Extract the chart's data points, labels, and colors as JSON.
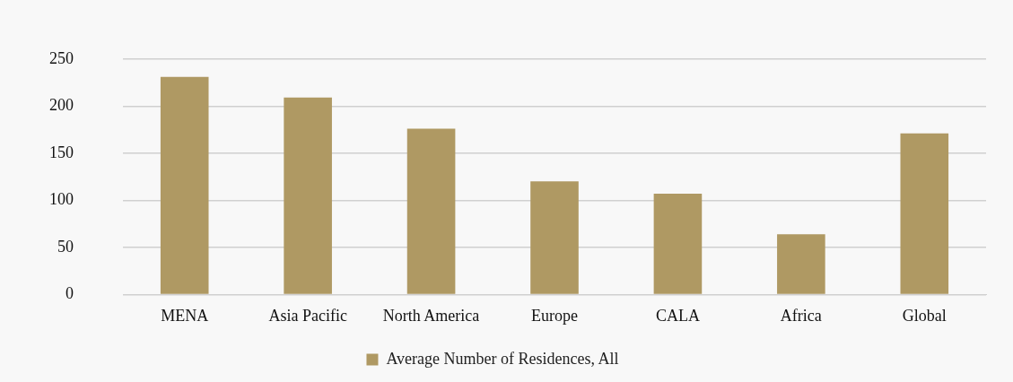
{
  "chart_data": {
    "type": "bar",
    "categories": [
      "MENA",
      "Asia Pacific",
      "North America",
      "Europe",
      "CALA",
      "Africa",
      "Global"
    ],
    "series": [
      {
        "name": "Average Number of Residences, All",
        "color": "#af9963",
        "values": [
          231,
          209,
          176,
          120,
          107,
          64,
          171
        ]
      }
    ],
    "ylim": [
      0,
      250
    ],
    "yticks": [
      0,
      50,
      100,
      150,
      200,
      250
    ],
    "grid": "y",
    "legend": "bottom"
  }
}
